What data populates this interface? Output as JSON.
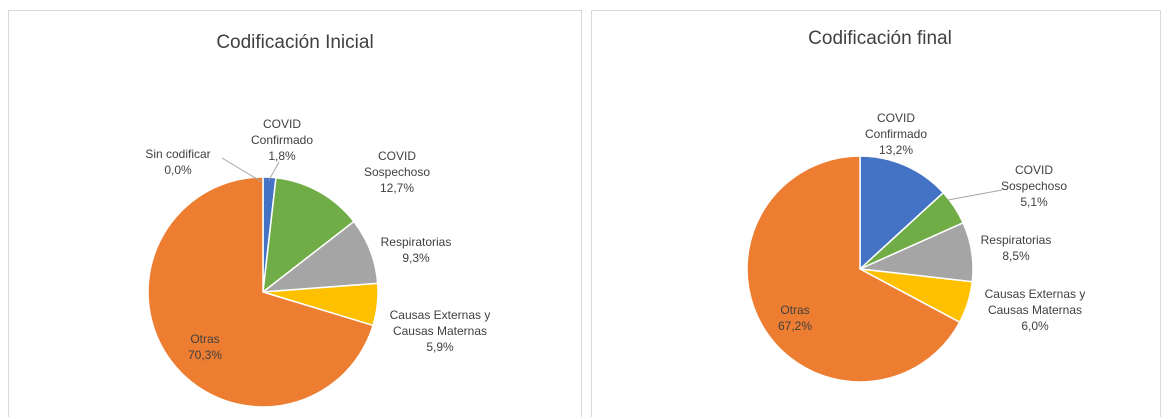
{
  "chart_data": [
    {
      "type": "pie",
      "title": "Codificación Inicial",
      "categories": [
        "Sin codificar",
        "COVID Confirmado",
        "COVID Sospechoso",
        "Respiratorias",
        "Causas Externas y Causas Maternas",
        "Otras"
      ],
      "values": [
        0.0,
        1.8,
        12.7,
        9.3,
        5.9,
        70.3
      ],
      "value_labels": [
        "0,0%",
        "1,8%",
        "12,7%",
        "9,3%",
        "5,9%",
        "70,3%"
      ],
      "colors": [
        "#5b9bd5",
        "#4472c4",
        "#70ad47",
        "#a5a5a5",
        "#ffc000",
        "#ed7d31"
      ]
    },
    {
      "type": "pie",
      "title": "Codificación final",
      "categories": [
        "COVID Confirmado",
        "COVID Sospechoso",
        "Respiratorias",
        "Causas Externas y Causas Maternas",
        "Otras"
      ],
      "values": [
        13.2,
        5.1,
        8.5,
        6.0,
        67.2
      ],
      "value_labels": [
        "13,2%",
        "5,1%",
        "8,5%",
        "6,0%",
        "67,2%"
      ],
      "colors": [
        "#4472c4",
        "#70ad47",
        "#a5a5a5",
        "#ffc000",
        "#ed7d31"
      ]
    }
  ]
}
